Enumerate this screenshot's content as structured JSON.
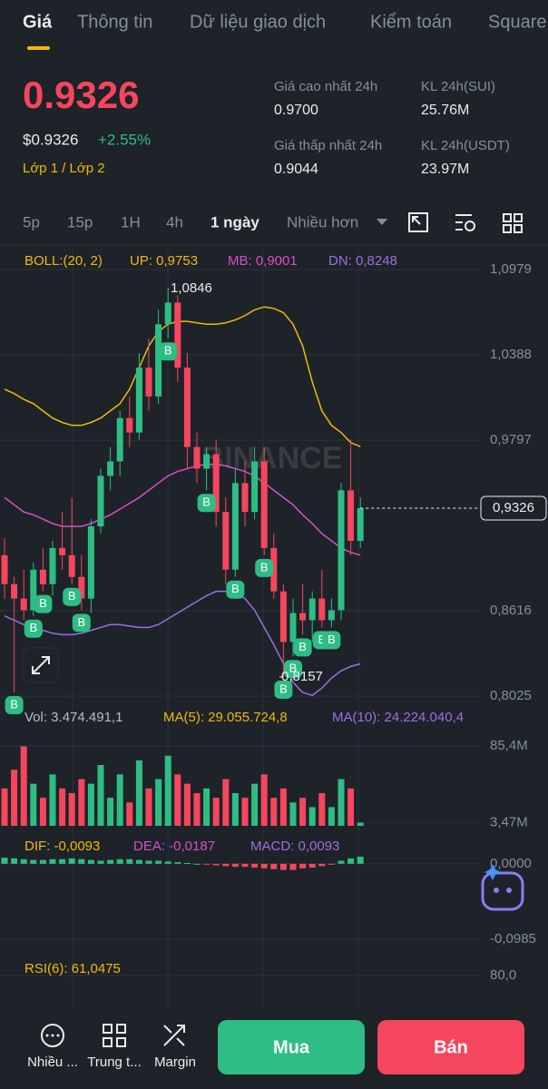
{
  "tabs": [
    "Giá",
    "Thông tin",
    "Dữ liệu giao dịch",
    "Kiểm toán",
    "Square"
  ],
  "ticker": {
    "price": "0.9326",
    "usd_price": "$0.9326",
    "change": "+2.55%",
    "tag": "Lớp 1 / Lớp 2"
  },
  "stats": [
    {
      "label": "Giá cao nhất 24h",
      "value": "0.9700"
    },
    {
      "label": "KL 24h(SUI)",
      "value": "25.76M"
    },
    {
      "label": "Giá thấp nhất 24h",
      "value": "0.9044"
    },
    {
      "label": "KL 24h(USDT)",
      "value": "23.97M"
    }
  ],
  "intervals": [
    "5p",
    "15p",
    "1H",
    "4h",
    "1 ngày",
    "Nhiều hơn"
  ],
  "chart_data": [
    {
      "type": "candlestick",
      "indicator": "BOLL:(20, 2)",
      "watermark": "BINANCE",
      "up_color": "#2ebd85",
      "down_color": "#f6465d",
      "categories": [
        null,
        null,
        null,
        null,
        null,
        null,
        null,
        null,
        null,
        null,
        null,
        null,
        null,
        null,
        null,
        null,
        null,
        null,
        null,
        null,
        null,
        null,
        null,
        null,
        null,
        null,
        null,
        null,
        null,
        null,
        null,
        null,
        null,
        null,
        null,
        null,
        null,
        null
      ],
      "open": [
        0.9,
        0.88,
        0.87,
        0.862,
        0.89,
        0.88,
        0.905,
        0.9,
        0.885,
        0.87,
        0.92,
        0.955,
        0.965,
        0.995,
        0.985,
        1.03,
        1.01,
        1.06,
        1.075,
        1.03,
        0.975,
        0.96,
        0.97,
        0.93,
        0.89,
        0.95,
        0.93,
        0.965,
        0.905,
        0.875,
        0.84,
        0.86,
        0.855,
        0.87,
        0.855,
        0.862,
        0.945,
        0.91
      ],
      "high": [
        0.912,
        0.885,
        0.89,
        0.895,
        0.905,
        0.91,
        0.93,
        0.94,
        0.9,
        0.925,
        0.96,
        0.975,
        1.0,
        1.01,
        1.04,
        1.05,
        1.07,
        1.0846,
        1.08,
        1.04,
        0.985,
        0.975,
        0.98,
        0.94,
        0.96,
        0.965,
        0.975,
        0.975,
        0.915,
        0.88,
        0.87,
        0.88,
        0.875,
        0.89,
        0.87,
        0.95,
        0.98,
        0.94
      ],
      "low": [
        0.87,
        0.805,
        0.855,
        0.858,
        0.875,
        0.872,
        0.89,
        0.88,
        0.862,
        0.86,
        0.915,
        0.945,
        0.955,
        0.975,
        0.98,
        1.0,
        1.005,
        1.05,
        1.02,
        0.96,
        0.95,
        0.945,
        0.92,
        0.88,
        0.885,
        0.92,
        0.925,
        0.9,
        0.87,
        0.8157,
        0.83,
        0.845,
        0.84,
        0.85,
        0.85,
        0.855,
        0.9,
        0.905
      ],
      "close": [
        0.88,
        0.87,
        0.862,
        0.89,
        0.88,
        0.905,
        0.9,
        0.885,
        0.87,
        0.92,
        0.955,
        0.965,
        0.995,
        0.985,
        1.03,
        1.01,
        1.06,
        1.075,
        1.03,
        0.975,
        0.96,
        0.97,
        0.93,
        0.89,
        0.95,
        0.93,
        0.965,
        0.905,
        0.875,
        0.84,
        0.86,
        0.855,
        0.87,
        0.855,
        0.862,
        0.945,
        0.91,
        0.9326
      ],
      "series": [
        {
          "name": "UP: 0,9753",
          "color": "#f0b90b",
          "values": [
            1.015,
            1.012,
            1.008,
            1.005,
            1.0,
            0.995,
            0.992,
            0.99,
            0.99,
            0.992,
            0.995,
            1.0,
            1.005,
            1.015,
            1.03,
            1.045,
            1.055,
            1.06,
            1.062,
            1.062,
            1.061,
            1.06,
            1.06,
            1.061,
            1.063,
            1.066,
            1.07,
            1.072,
            1.071,
            1.068,
            1.06,
            1.045,
            1.02,
            1.0,
            0.99,
            0.985,
            0.978,
            0.9753
          ]
        },
        {
          "name": "MB: 0,9001",
          "color": "#d84fc8",
          "values": [
            0.94,
            0.935,
            0.93,
            0.928,
            0.925,
            0.922,
            0.92,
            0.92,
            0.92,
            0.922,
            0.925,
            0.928,
            0.932,
            0.936,
            0.94,
            0.945,
            0.95,
            0.955,
            0.958,
            0.96,
            0.962,
            0.963,
            0.963,
            0.962,
            0.96,
            0.958,
            0.955,
            0.95,
            0.945,
            0.94,
            0.935,
            0.928,
            0.922,
            0.915,
            0.91,
            0.905,
            0.902,
            0.9001
          ]
        },
        {
          "name": "DN: 0,8248",
          "color": "#9b6fe0",
          "values": [
            0.858,
            0.855,
            0.852,
            0.85,
            0.848,
            0.846,
            0.845,
            0.845,
            0.846,
            0.848,
            0.85,
            0.852,
            0.852,
            0.851,
            0.85,
            0.85,
            0.852,
            0.856,
            0.86,
            0.864,
            0.868,
            0.872,
            0.875,
            0.875,
            0.874,
            0.87,
            0.862,
            0.85,
            0.838,
            0.825,
            0.812,
            0.805,
            0.803,
            0.808,
            0.815,
            0.82,
            0.823,
            0.8248
          ]
        }
      ],
      "ylim": [
        0.8025,
        1.0979
      ],
      "yticks": [
        {
          "value": 1.0979,
          "label": "1,0979"
        },
        {
          "value": 1.0388,
          "label": "1,0388"
        },
        {
          "value": 0.9797,
          "label": "0,9797"
        },
        {
          "value": 0.8616,
          "label": "0,8616"
        },
        {
          "value": 0.8025,
          "label": "0,8025"
        }
      ],
      "last_price": {
        "value": 0.9326,
        "label": "0,9326"
      },
      "annotations": [
        {
          "value": 1.0846,
          "label": "1,0846"
        },
        {
          "value": 0.8157,
          "label": "0,8157"
        }
      ],
      "buy_markers": {
        "label": "B",
        "at": [
          1,
          3,
          4,
          7,
          8,
          17,
          21,
          24,
          27,
          29,
          30,
          31,
          33,
          34
        ]
      }
    },
    {
      "type": "bar",
      "legend": [
        {
          "text": "Vol: 3.474.491,1",
          "color": "#b7bdc6"
        },
        {
          "text": "MA(5): 29.055.724,8",
          "color": "#f0b90b"
        },
        {
          "text": "MA(10): 24.224.040,4",
          "color": "#9b6fe0"
        }
      ],
      "values": [
        40,
        60,
        85,
        45,
        30,
        55,
        40,
        35,
        50,
        45,
        65,
        30,
        55,
        25,
        70,
        40,
        50,
        75,
        55,
        45,
        35,
        40,
        30,
        50,
        35,
        30,
        45,
        55,
        30,
        40,
        25,
        30,
        20,
        35,
        20,
        50,
        40,
        3.4744911
      ],
      "ylim": [
        0,
        85.4
      ],
      "yticks": [
        {
          "value": 85.4,
          "label": "85,4M"
        },
        {
          "value": 3.47,
          "label": "3,47M"
        }
      ]
    },
    {
      "type": "bar",
      "legend": [
        {
          "text": "DIF: -0,0093",
          "color": "#f0b90b"
        },
        {
          "text": "DEA: -0,0187",
          "color": "#d84fc8"
        },
        {
          "text": "MACD: 0,0093",
          "color": "#9b6fe0"
        }
      ],
      "values": [
        0.008,
        0.007,
        0.006,
        0.005,
        0.005,
        0.006,
        0.006,
        0.007,
        0.006,
        0.005,
        0.004,
        0.005,
        0.006,
        0.006,
        0.005,
        0.004,
        0.004,
        0.003,
        0.002,
        0.001,
        0.0,
        -0.001,
        -0.002,
        -0.003,
        -0.004,
        -0.004,
        -0.005,
        -0.006,
        -0.007,
        -0.008,
        -0.008,
        -0.006,
        -0.005,
        -0.003,
        -0.001,
        0.004,
        0.007,
        0.0093
      ],
      "ylim": [
        -0.0985,
        0.014
      ],
      "yticks": [
        {
          "value": 0,
          "label": "0,0000"
        },
        {
          "value": -0.0985,
          "label": "-0,0985"
        }
      ]
    },
    {
      "type": "line",
      "legend": [
        {
          "text": "RSI(6): 61,0475",
          "color": "#f0b90b"
        }
      ],
      "ylim": [
        66,
        86
      ],
      "yticks": [
        {
          "value": 80,
          "label": "80,0"
        }
      ]
    }
  ],
  "nav": {
    "items": [
      "Nhiều ...",
      "Trung t...",
      "Margin"
    ],
    "buy": "Mua",
    "sell": "Bán"
  }
}
